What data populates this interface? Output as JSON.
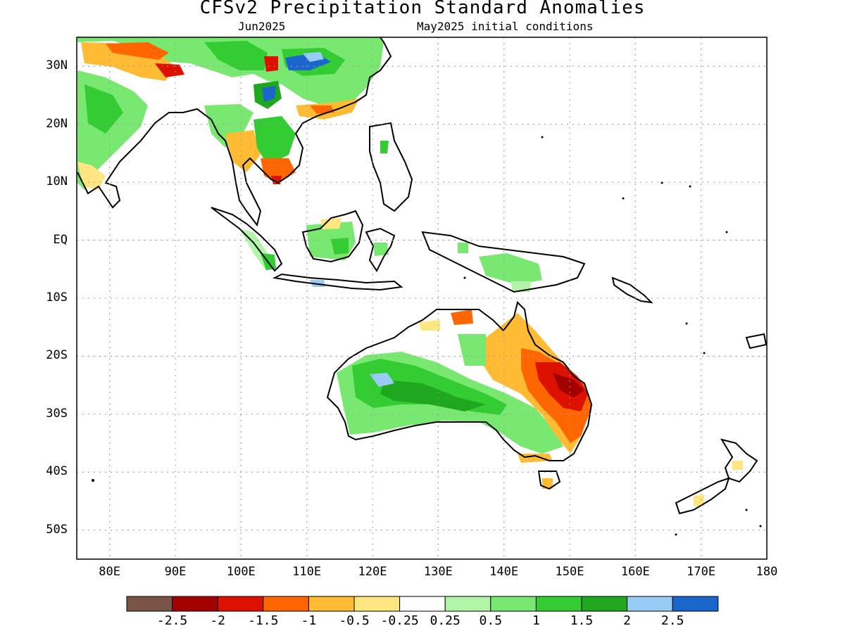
{
  "title": "CFSv2 Precipitation Standard Anomalies",
  "subtitle_left": "Jun2025",
  "subtitle_right": "May2025 initial conditions",
  "lat_labels": [
    "30N",
    "20N",
    "10N",
    "EQ",
    "10S",
    "20S",
    "30S",
    "40S",
    "50S"
  ],
  "lon_labels": [
    "80E",
    "90E",
    "100E",
    "110E",
    "120E",
    "130E",
    "140E",
    "150E",
    "160E",
    "170E",
    "180"
  ],
  "colorbar": {
    "colors": [
      "#7a5446",
      "#a30000",
      "#dd1100",
      "#ff6600",
      "#ffbb33",
      "#ffe680",
      "#ffffff",
      "#b3f5a8",
      "#78e870",
      "#33cc33",
      "#1fa81f",
      "#99ccf5",
      "#1a66cc"
    ],
    "labels": [
      "-2.5",
      "-2",
      "-1.5",
      "-1",
      "-0.5",
      "-0.25",
      "0.25",
      "0.5",
      "1",
      "1.5",
      "2",
      "2.5"
    ]
  },
  "map_extent": {
    "lon": [
      75,
      180
    ],
    "lat": [
      -55,
      35
    ]
  }
}
